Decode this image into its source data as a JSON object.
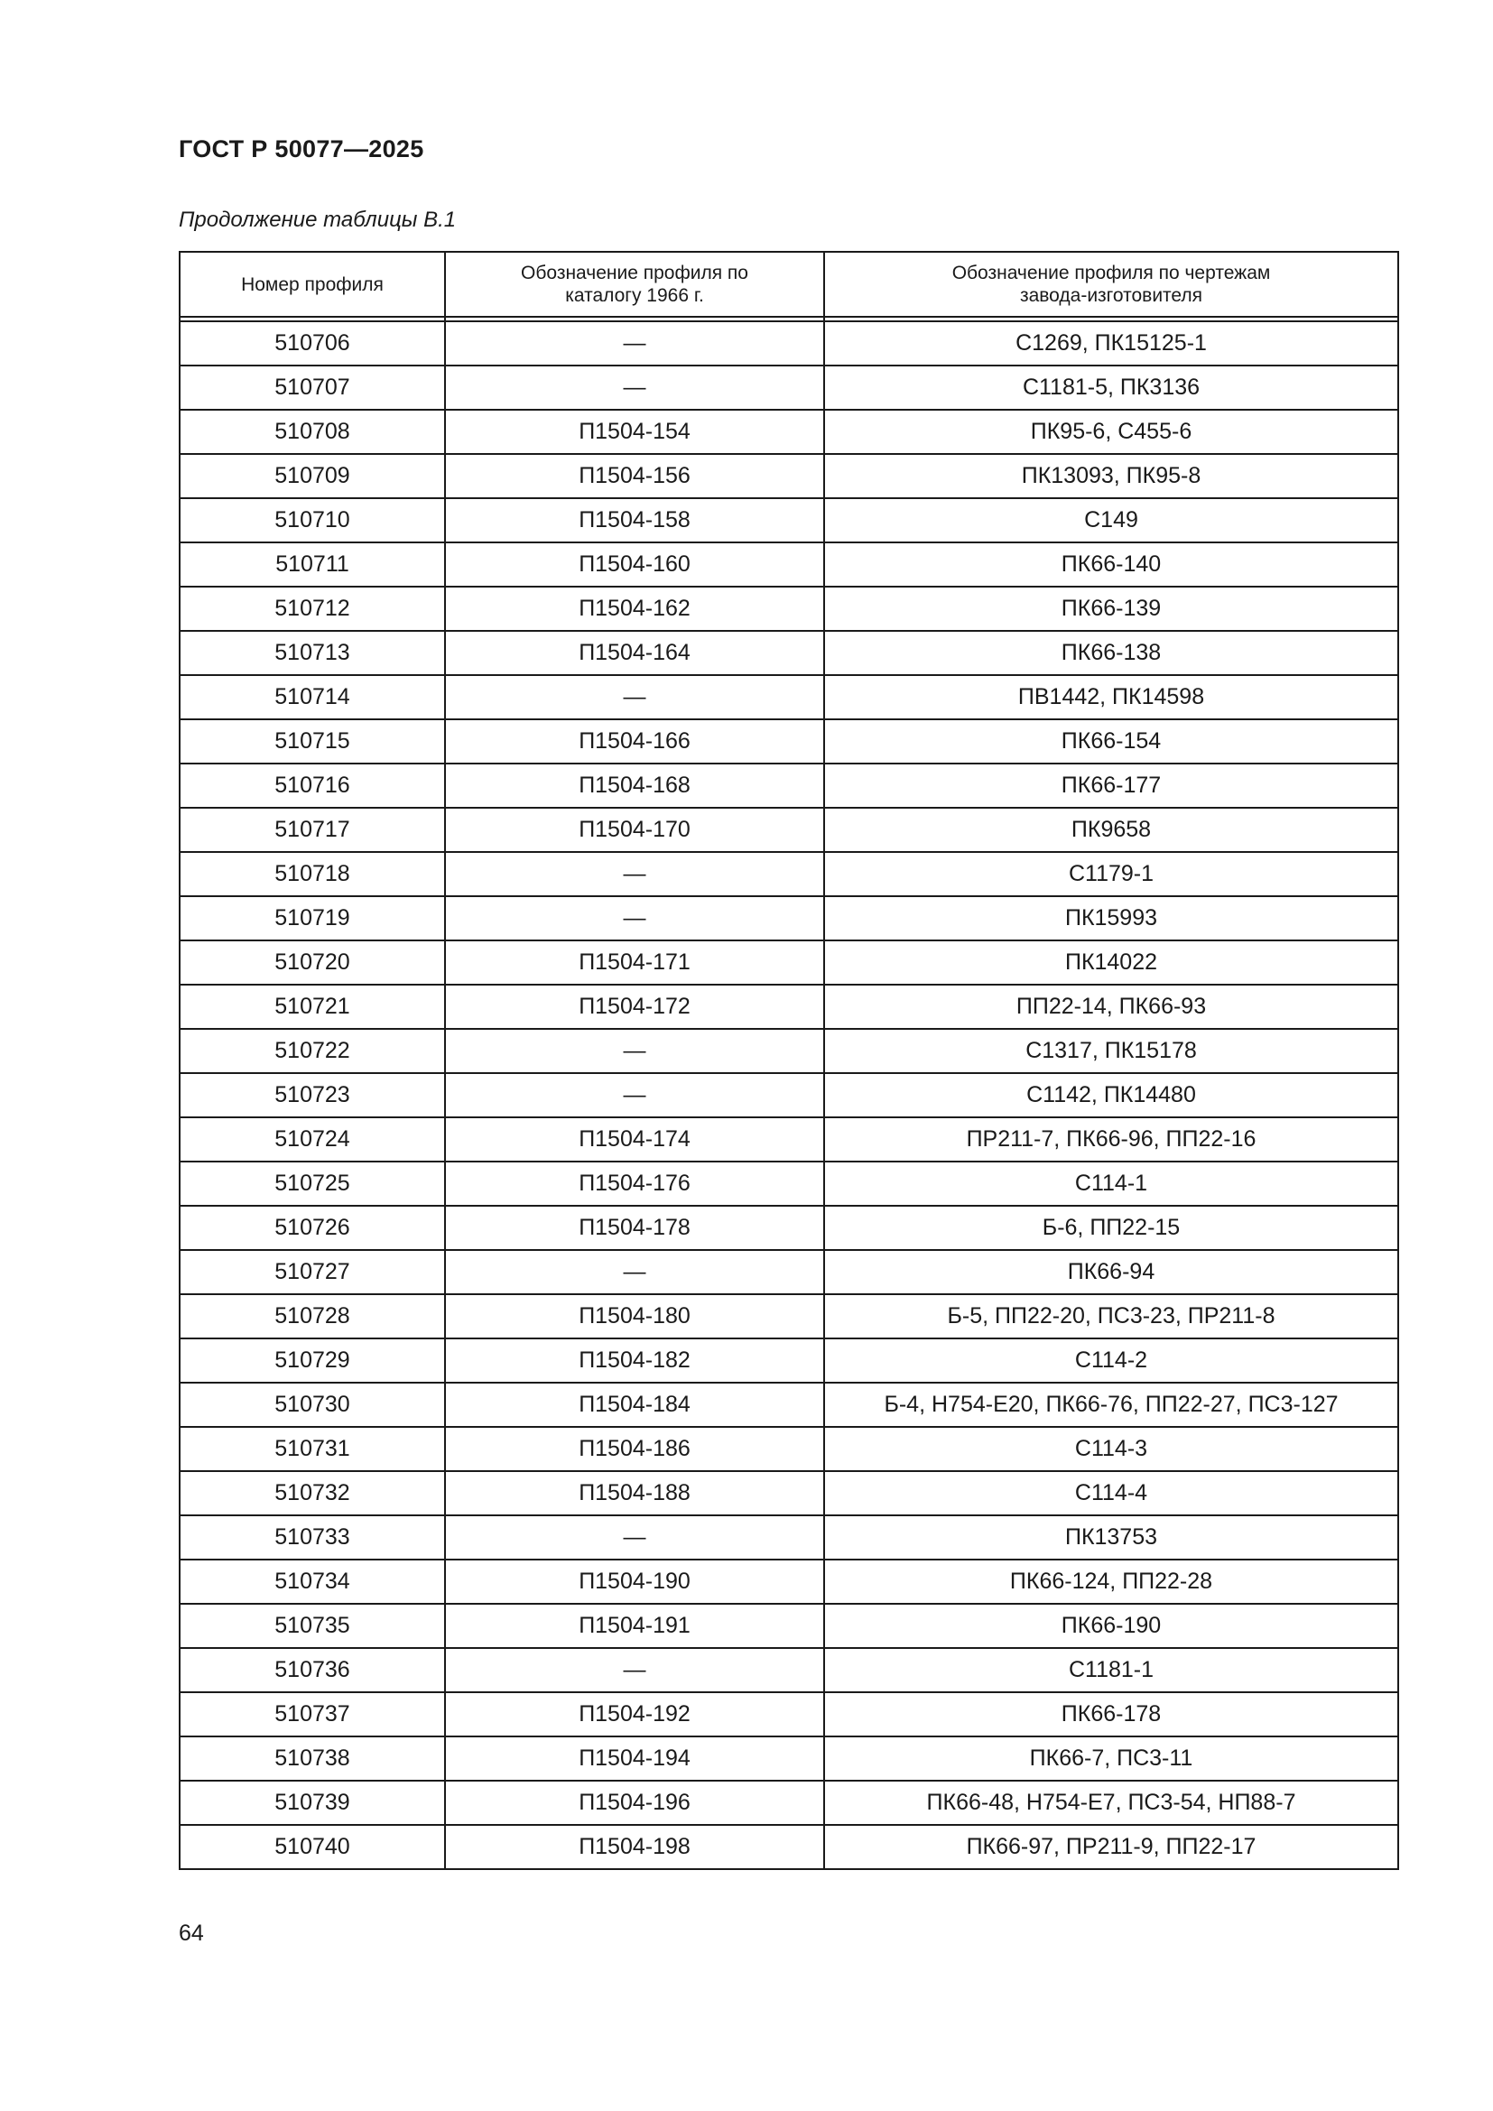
{
  "header": {
    "title": "ГОСТ Р 50077—2025"
  },
  "caption": "Продолжение таблицы В.1",
  "table": {
    "columns": [
      "Номер профиля",
      "Обозначение профиля по каталогу 1966 г.",
      "Обозначение профиля по чертежам завода-изготовителя"
    ],
    "rows": [
      [
        "510706",
        "—",
        "С1269, ПК15125-1"
      ],
      [
        "510707",
        "—",
        "С1181-5, ПК3136"
      ],
      [
        "510708",
        "П1504-154",
        "ПК95-6, С455-6"
      ],
      [
        "510709",
        "П1504-156",
        "ПК13093, ПК95-8"
      ],
      [
        "510710",
        "П1504-158",
        "С149"
      ],
      [
        "510711",
        "П1504-160",
        "ПК66-140"
      ],
      [
        "510712",
        "П1504-162",
        "ПК66-139"
      ],
      [
        "510713",
        "П1504-164",
        "ПК66-138"
      ],
      [
        "510714",
        "—",
        "ПВ1442, ПК14598"
      ],
      [
        "510715",
        "П1504-166",
        "ПК66-154"
      ],
      [
        "510716",
        "П1504-168",
        "ПК66-177"
      ],
      [
        "510717",
        "П1504-170",
        "ПК9658"
      ],
      [
        "510718",
        "—",
        "С1179-1"
      ],
      [
        "510719",
        "—",
        "ПК15993"
      ],
      [
        "510720",
        "П1504-171",
        "ПК14022"
      ],
      [
        "510721",
        "П1504-172",
        "ПП22-14, ПК66-93"
      ],
      [
        "510722",
        "—",
        "С1317, ПК15178"
      ],
      [
        "510723",
        "—",
        "С1142, ПК14480"
      ],
      [
        "510724",
        "П1504-174",
        "ПР211-7, ПК66-96, ПП22-16"
      ],
      [
        "510725",
        "П1504-176",
        "С114-1"
      ],
      [
        "510726",
        "П1504-178",
        "Б-6, ПП22-15"
      ],
      [
        "510727",
        "—",
        "ПК66-94"
      ],
      [
        "510728",
        "П1504-180",
        "Б-5, ПП22-20, ПС3-23, ПР211-8"
      ],
      [
        "510729",
        "П1504-182",
        "С114-2"
      ],
      [
        "510730",
        "П1504-184",
        "Б-4, Н754-Е20, ПК66-76, ПП22-27, ПС3-127"
      ],
      [
        "510731",
        "П1504-186",
        "С114-3"
      ],
      [
        "510732",
        "П1504-188",
        "С114-4"
      ],
      [
        "510733",
        "—",
        "ПК13753"
      ],
      [
        "510734",
        "П1504-190",
        "ПК66-124, ПП22-28"
      ],
      [
        "510735",
        "П1504-191",
        "ПК66-190"
      ],
      [
        "510736",
        "—",
        "С1181-1"
      ],
      [
        "510737",
        "П1504-192",
        "ПК66-178"
      ],
      [
        "510738",
        "П1504-194",
        "ПК66-7, ПС3-11"
      ],
      [
        "510739",
        "П1504-196",
        "ПК66-48, Н754-Е7, ПС3-54, НП88-7"
      ],
      [
        "510740",
        "П1504-198",
        "ПК66-97, ПР211-9, ПП22-17"
      ]
    ]
  },
  "footer": {
    "page_number": "64"
  }
}
